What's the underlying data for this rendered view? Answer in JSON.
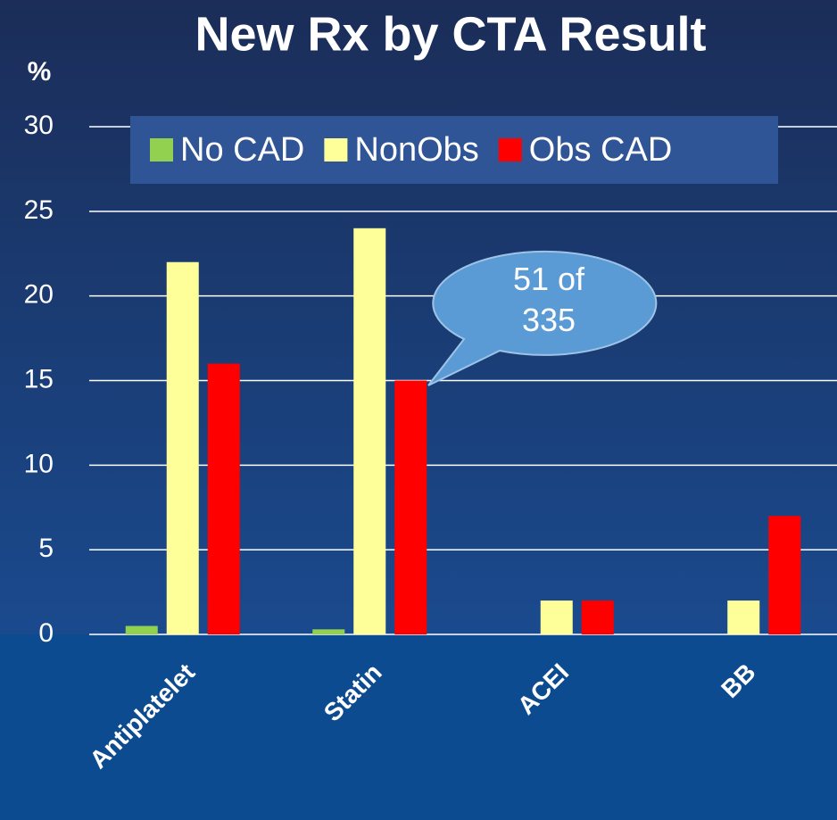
{
  "chart_data": {
    "type": "bar",
    "title": "New Rx by CTA Result",
    "y_label": "%",
    "categories": [
      "Antiplatelet",
      "Statin",
      "ACEI",
      "BB"
    ],
    "series": [
      {
        "name": "No CAD",
        "color": "#92d050",
        "values": [
          0.5,
          0.3,
          0,
          0
        ]
      },
      {
        "name": "NonObs",
        "color": "#ffff99",
        "values": [
          22,
          24,
          2,
          2
        ]
      },
      {
        "name": "Obs CAD",
        "color": "#ff0000",
        "values": [
          16,
          15,
          2,
          7
        ]
      }
    ],
    "ylim": [
      0,
      30
    ],
    "yticks": [
      0,
      5,
      10,
      15,
      20,
      25,
      30
    ],
    "grid": true,
    "legend": "top",
    "annotation": "51 of 335"
  }
}
